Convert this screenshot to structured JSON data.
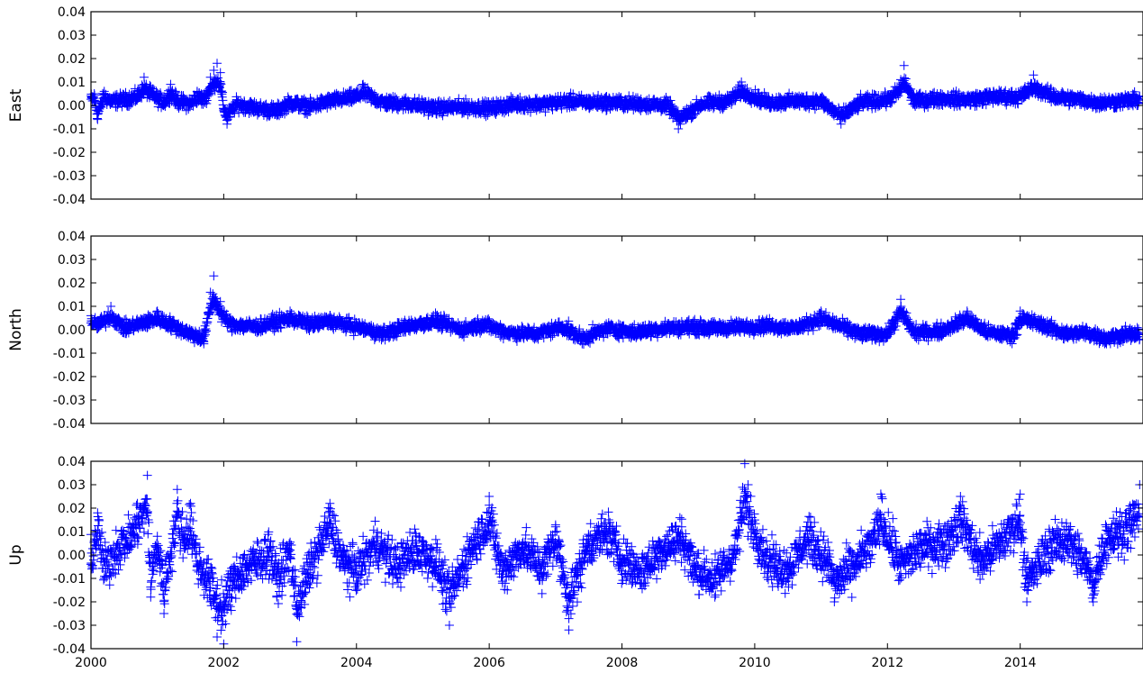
{
  "figure": {
    "background": "#ffffff",
    "marker": "plus",
    "marker_color": "#0000ff"
  },
  "chart_data": [
    {
      "type": "scatter",
      "ylabel": "East",
      "ylim": [
        -0.04,
        0.04
      ],
      "yticks": [
        "0.04",
        "0.03",
        "0.02",
        "0.01",
        "0.00",
        "-0.01",
        "-0.02",
        "-0.03",
        "-0.04"
      ],
      "xlim": [
        2000,
        2015.85
      ],
      "xtick_labels_shown": false,
      "grid": false,
      "series": [
        {
          "color": "#0000ff",
          "marker": "+",
          "points": [
            [
              2000.0,
              0.004
            ],
            [
              2000.05,
              0.005
            ],
            [
              2000.1,
              -0.006
            ],
            [
              2000.2,
              0.006
            ],
            [
              2000.3,
              0.003
            ],
            [
              2000.5,
              0.004
            ],
            [
              2000.7,
              0.006
            ],
            [
              2000.8,
              0.012
            ],
            [
              2000.9,
              0.008
            ],
            [
              2001.0,
              0.005
            ],
            [
              2001.1,
              0.002
            ],
            [
              2001.2,
              0.009
            ],
            [
              2001.3,
              0.003
            ],
            [
              2001.5,
              0.001
            ],
            [
              2001.6,
              0.006
            ],
            [
              2001.7,
              0.004
            ],
            [
              2001.8,
              0.012
            ],
            [
              2001.85,
              0.015
            ],
            [
              2001.9,
              0.018
            ],
            [
              2001.95,
              0.014
            ],
            [
              2002.0,
              -0.002
            ],
            [
              2002.05,
              -0.008
            ],
            [
              2002.2,
              0.001
            ],
            [
              2002.5,
              -0.002
            ],
            [
              2002.8,
              -0.004
            ],
            [
              2003.0,
              0.002
            ],
            [
              2003.3,
              -0.001
            ],
            [
              2003.6,
              0.003
            ],
            [
              2004.0,
              0.006
            ],
            [
              2004.1,
              0.009
            ],
            [
              2004.4,
              0.002
            ],
            [
              2004.8,
              0.001
            ],
            [
              2005.2,
              -0.002
            ],
            [
              2005.6,
              -0.001
            ],
            [
              2006.0,
              -0.002
            ],
            [
              2006.4,
              0.001
            ],
            [
              2006.8,
              0.001
            ],
            [
              2007.2,
              0.003
            ],
            [
              2007.5,
              0.002
            ],
            [
              2007.9,
              0.002
            ],
            [
              2008.3,
              0.001
            ],
            [
              2008.7,
              0.0
            ],
            [
              2008.85,
              -0.01
            ],
            [
              2009.2,
              0.001
            ],
            [
              2009.6,
              0.003
            ],
            [
              2009.8,
              0.01
            ],
            [
              2010.2,
              0.002
            ],
            [
              2010.6,
              0.003
            ],
            [
              2011.0,
              0.003
            ],
            [
              2011.3,
              -0.008
            ],
            [
              2011.6,
              0.002
            ],
            [
              2012.0,
              0.004
            ],
            [
              2012.2,
              0.011
            ],
            [
              2012.25,
              0.017
            ],
            [
              2012.4,
              0.003
            ],
            [
              2012.8,
              0.005
            ],
            [
              2013.2,
              0.004
            ],
            [
              2013.6,
              0.006
            ],
            [
              2014.0,
              0.006
            ],
            [
              2014.2,
              0.013
            ],
            [
              2014.5,
              0.006
            ],
            [
              2014.9,
              0.004
            ],
            [
              2015.2,
              0.002
            ],
            [
              2015.5,
              0.003
            ],
            [
              2015.8,
              0.004
            ]
          ]
        }
      ]
    },
    {
      "type": "scatter",
      "ylabel": "North",
      "ylim": [
        -0.04,
        0.04
      ],
      "yticks": [
        "0.04",
        "0.03",
        "0.02",
        "0.01",
        "0.00",
        "-0.01",
        "-0.02",
        "-0.03",
        "-0.04"
      ],
      "xlim": [
        2000,
        2015.85
      ],
      "xtick_labels_shown": false,
      "grid": false,
      "series": [
        {
          "color": "#0000ff",
          "marker": "+",
          "points": [
            [
              2000.0,
              0.006
            ],
            [
              2000.1,
              0.003
            ],
            [
              2000.3,
              0.01
            ],
            [
              2000.5,
              0.001
            ],
            [
              2000.8,
              0.005
            ],
            [
              2001.0,
              0.008
            ],
            [
              2001.2,
              0.004
            ],
            [
              2001.5,
              -0.003
            ],
            [
              2001.7,
              -0.006
            ],
            [
              2001.8,
              0.016
            ],
            [
              2001.85,
              0.023
            ],
            [
              2001.95,
              0.012
            ],
            [
              2002.1,
              0.004
            ],
            [
              2002.5,
              0.002
            ],
            [
              2003.0,
              0.008
            ],
            [
              2003.3,
              0.004
            ],
            [
              2003.6,
              0.006
            ],
            [
              2004.0,
              0.002
            ],
            [
              2004.4,
              -0.003
            ],
            [
              2004.8,
              0.003
            ],
            [
              2005.2,
              0.006
            ],
            [
              2005.6,
              0.0
            ],
            [
              2005.9,
              0.004
            ],
            [
              2006.3,
              -0.002
            ],
            [
              2006.7,
              -0.003
            ],
            [
              2007.1,
              0.002
            ],
            [
              2007.4,
              -0.006
            ],
            [
              2007.8,
              0.001
            ],
            [
              2008.2,
              -0.002
            ],
            [
              2008.6,
              0.001
            ],
            [
              2009.0,
              0.002
            ],
            [
              2009.4,
              0.001
            ],
            [
              2009.8,
              0.002
            ],
            [
              2010.2,
              0.003
            ],
            [
              2010.6,
              0.001
            ],
            [
              2011.0,
              0.008
            ],
            [
              2011.2,
              0.004
            ],
            [
              2011.6,
              -0.003
            ],
            [
              2012.0,
              -0.003
            ],
            [
              2012.2,
              0.013
            ],
            [
              2012.4,
              -0.002
            ],
            [
              2012.8,
              -0.001
            ],
            [
              2013.2,
              0.008
            ],
            [
              2013.5,
              -0.002
            ],
            [
              2013.9,
              -0.004
            ],
            [
              2014.0,
              0.008
            ],
            [
              2014.3,
              0.004
            ],
            [
              2014.7,
              -0.003
            ],
            [
              2015.0,
              -0.002
            ],
            [
              2015.3,
              -0.006
            ],
            [
              2015.6,
              -0.003
            ],
            [
              2015.8,
              -0.004
            ]
          ]
        }
      ]
    },
    {
      "type": "scatter",
      "ylabel": "Up",
      "ylim": [
        -0.04,
        0.04
      ],
      "yticks": [
        "0.04",
        "0.03",
        "0.02",
        "0.01",
        "0.00",
        "-0.01",
        "-0.02",
        "-0.03",
        "-0.04"
      ],
      "xlim": [
        2000,
        2015.85
      ],
      "xticks": [
        "2000",
        "2002",
        "2004",
        "2006",
        "2008",
        "2010",
        "2012",
        "2014"
      ],
      "xtick_values": [
        2000,
        2002,
        2004,
        2006,
        2008,
        2010,
        2012,
        2014
      ],
      "grid": false,
      "series": [
        {
          "color": "#0000ff",
          "marker": "+",
          "points": [
            [
              2000.0,
              -0.004
            ],
            [
              2000.1,
              0.018
            ],
            [
              2000.2,
              -0.01
            ],
            [
              2000.4,
              0.005
            ],
            [
              2000.6,
              0.012
            ],
            [
              2000.7,
              0.022
            ],
            [
              2000.85,
              0.034
            ],
            [
              2000.9,
              -0.018
            ],
            [
              2001.0,
              0.008
            ],
            [
              2001.1,
              -0.025
            ],
            [
              2001.3,
              0.028
            ],
            [
              2001.4,
              0.01
            ],
            [
              2001.5,
              0.022
            ],
            [
              2001.6,
              -0.005
            ],
            [
              2001.8,
              -0.02
            ],
            [
              2001.9,
              -0.035
            ],
            [
              2002.0,
              -0.038
            ],
            [
              2002.1,
              -0.022
            ],
            [
              2002.3,
              -0.01
            ],
            [
              2002.5,
              -0.005
            ],
            [
              2002.7,
              0.003
            ],
            [
              2002.8,
              -0.018
            ],
            [
              2003.0,
              0.002
            ],
            [
              2003.1,
              -0.037
            ],
            [
              2003.3,
              -0.01
            ],
            [
              2003.6,
              0.022
            ],
            [
              2003.8,
              -0.005
            ],
            [
              2004.0,
              -0.012
            ],
            [
              2004.3,
              0.008
            ],
            [
              2004.6,
              -0.008
            ],
            [
              2004.9,
              0.004
            ],
            [
              2005.2,
              -0.005
            ],
            [
              2005.4,
              -0.03
            ],
            [
              2005.7,
              0.002
            ],
            [
              2006.0,
              0.025
            ],
            [
              2006.2,
              -0.012
            ],
            [
              2006.5,
              0.005
            ],
            [
              2006.8,
              -0.01
            ],
            [
              2007.0,
              0.012
            ],
            [
              2007.2,
              -0.032
            ],
            [
              2007.5,
              0.008
            ],
            [
              2007.8,
              0.015
            ],
            [
              2008.0,
              -0.003
            ],
            [
              2008.3,
              -0.012
            ],
            [
              2008.6,
              0.004
            ],
            [
              2008.9,
              0.012
            ],
            [
              2009.1,
              -0.01
            ],
            [
              2009.4,
              -0.018
            ],
            [
              2009.7,
              0.002
            ],
            [
              2009.85,
              0.039
            ],
            [
              2009.9,
              0.03
            ],
            [
              2010.2,
              -0.005
            ],
            [
              2010.5,
              -0.01
            ],
            [
              2010.8,
              0.012
            ],
            [
              2011.1,
              -0.005
            ],
            [
              2011.2,
              -0.02
            ],
            [
              2011.5,
              -0.008
            ],
            [
              2011.8,
              0.01
            ],
            [
              2011.9,
              0.026
            ],
            [
              2012.2,
              -0.008
            ],
            [
              2012.5,
              0.005
            ],
            [
              2012.9,
              0.01
            ],
            [
              2013.1,
              0.025
            ],
            [
              2013.4,
              -0.005
            ],
            [
              2013.7,
              0.008
            ],
            [
              2014.0,
              0.026
            ],
            [
              2014.1,
              -0.02
            ],
            [
              2014.4,
              0.003
            ],
            [
              2014.7,
              0.012
            ],
            [
              2015.0,
              -0.008
            ],
            [
              2015.1,
              -0.02
            ],
            [
              2015.3,
              0.012
            ],
            [
              2015.6,
              0.018
            ],
            [
              2015.8,
              0.03
            ]
          ]
        }
      ]
    }
  ]
}
